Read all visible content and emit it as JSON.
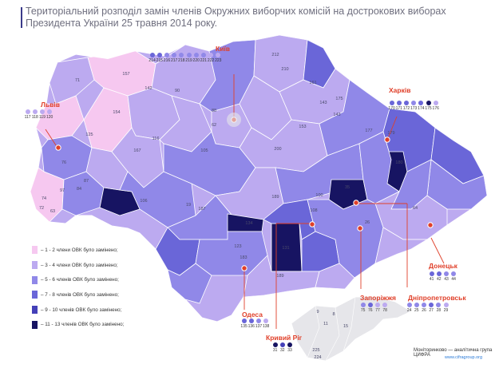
{
  "title": "Територіальний розподіл замін членів Окружних виборчих комісій на дострокових виборах Президента України 25 травня 2014 року.",
  "colors": {
    "lvl1": "#f6c8f0",
    "lvl2": "#bcaaf0",
    "lvl3": "#9088e8",
    "lvl4": "#6a66d8",
    "lvl5": "#4440b8",
    "lvl6": "#171462",
    "crimea": "#e6e6ea",
    "city_marker": "#e0402a"
  },
  "legend": [
    {
      "label": "– 1 - 2 члени ОВК було замінено;",
      "color": "#f6c8f0"
    },
    {
      "label": "– 3 - 4 члени ОВК було замінено;",
      "color": "#bcaaf0"
    },
    {
      "label": "– 5 - 6 членів ОВК було замінено;",
      "color": "#9088e8"
    },
    {
      "label": "– 7 - 8 членів ОВК було замінено;",
      "color": "#6a66d8"
    },
    {
      "label": "– 9 - 10 членів ОВК було замінено;",
      "color": "#4440b8"
    },
    {
      "label": "– 11 - 13 членів ОВК було замінено;",
      "color": "#171462"
    }
  ],
  "cities": [
    {
      "name": "Київ",
      "districts": [
        "214",
        "215",
        "216",
        "217",
        "218",
        "219",
        "220",
        "221",
        "222",
        "223"
      ],
      "levels": [
        4,
        4,
        3,
        3,
        3,
        3,
        3,
        3,
        2,
        2
      ]
    },
    {
      "name": "Львів",
      "districts": [
        "117",
        "118",
        "119",
        "120"
      ],
      "levels": [
        2,
        2,
        2,
        2
      ]
    },
    {
      "name": "Харків",
      "districts": [
        "170",
        "171",
        "172",
        "173",
        "174",
        "175",
        "176"
      ],
      "levels": [
        4,
        4,
        4,
        3,
        4,
        6,
        2
      ]
    },
    {
      "name": "Донецьк",
      "districts": [
        "41",
        "42",
        "43",
        "44"
      ],
      "levels": [
        4,
        4,
        3,
        3
      ]
    },
    {
      "name": "Дніпропетровськ",
      "districts": [
        "24",
        "25",
        "26",
        "27",
        "28",
        "29"
      ],
      "levels": [
        3,
        3,
        3,
        4,
        3,
        2
      ]
    },
    {
      "name": "Запоріжжя",
      "districts": [
        "75",
        "76",
        "77",
        "78"
      ],
      "levels": [
        3,
        4,
        2,
        2
      ]
    },
    {
      "name": "Одеса",
      "districts": [
        "135",
        "136",
        "137",
        "138"
      ],
      "levels": [
        4,
        4,
        3,
        2
      ]
    },
    {
      "name": "Кривий Ріг",
      "districts": [
        "31",
        "32",
        "33"
      ],
      "levels": [
        6,
        5,
        6
      ]
    }
  ],
  "district_numbers": [
    "71",
    "157",
    "125",
    "212",
    "210",
    "161",
    "175",
    "143",
    "154",
    "142",
    "90",
    "88",
    "62",
    "105",
    "153",
    "200",
    "177",
    "179",
    "180",
    "84",
    "76",
    "97",
    "87",
    "74",
    "63",
    "72",
    "187",
    "19",
    "134",
    "100",
    "108",
    "35",
    "123",
    "183",
    "131",
    "9",
    "11",
    "225",
    "224",
    "15",
    "8",
    "189",
    "106",
    "116",
    "167",
    "143",
    "189",
    "26",
    "64"
  ],
  "footer": {
    "org": "Моніторинково — аналітична група ЦИФРА",
    "site": "www.cifragroup.org"
  }
}
